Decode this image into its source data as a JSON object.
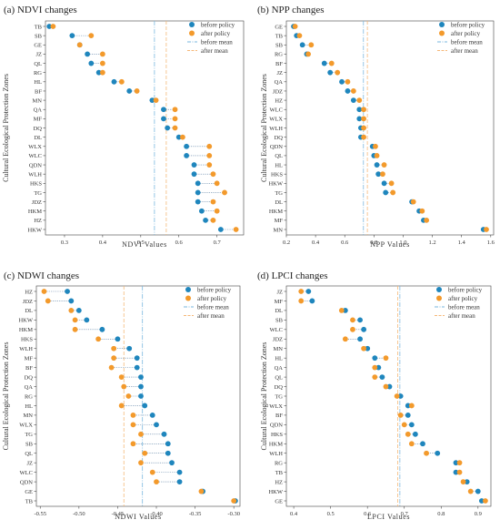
{
  "colors": {
    "before": "#1f86bd",
    "after": "#f39a2c",
    "before_mean": "#7ab7df",
    "after_mean": "#f5b878"
  },
  "chart_data": [
    {
      "type": "dumbbell",
      "title": "(a)  NDVI changes",
      "xlabel": "NDVI Values",
      "ylabel": "Cultural Ecological Protection Zones",
      "xlim": [
        0.25,
        0.77
      ],
      "xticks": [
        0.3,
        0.4,
        0.5,
        0.6,
        0.7
      ],
      "xtick_labels": [
        "0.3",
        "0.4",
        "0.5",
        "0.6",
        "0.7"
      ],
      "categories": [
        "TB",
        "SB",
        "GE",
        "JZ",
        "QL",
        "RG",
        "HL",
        "BF",
        "MN",
        "QA",
        "MF",
        "DQ",
        "DL",
        "WLX",
        "WLC",
        "QDN",
        "WLH",
        "HKS",
        "TG",
        "JDZ",
        "HKM",
        "HZ",
        "HKW"
      ],
      "series": [
        {
          "name": "before policy",
          "values": [
            0.26,
            0.32,
            0.34,
            0.36,
            0.37,
            0.39,
            0.43,
            0.47,
            0.53,
            0.56,
            0.56,
            0.57,
            0.6,
            0.62,
            0.62,
            0.64,
            0.64,
            0.65,
            0.65,
            0.65,
            0.66,
            0.67,
            0.71
          ]
        },
        {
          "name": "after policy",
          "values": [
            0.27,
            0.37,
            0.34,
            0.4,
            0.4,
            0.4,
            0.45,
            0.49,
            0.54,
            0.59,
            0.59,
            0.59,
            0.61,
            0.68,
            0.68,
            0.68,
            0.69,
            0.7,
            0.72,
            0.69,
            0.7,
            0.69,
            0.75
          ]
        }
      ],
      "means": [
        {
          "name": "before mean",
          "value": 0.536
        },
        {
          "name": "after mean",
          "value": 0.567
        }
      ],
      "legend": [
        "before policy",
        "after policy",
        "before mean",
        "after mean"
      ],
      "legend_position": "top-right"
    },
    {
      "type": "dumbbell",
      "title": "(b)  NPP changes",
      "xlabel": "NPP Values",
      "ylabel": "Cultural Ecological Protection Zones",
      "xlim": [
        0.2,
        1.62
      ],
      "xticks": [
        0.2,
        0.4,
        0.6,
        0.8,
        1.0,
        1.2,
        1.4,
        1.6
      ],
      "xtick_labels": [
        "0.2",
        "0.4",
        "0.6",
        "0.8",
        "1.0",
        "1.2",
        "1.4",
        "1.6"
      ],
      "categories": [
        "GE",
        "TB",
        "SB",
        "RG",
        "BF",
        "JZ",
        "QA",
        "JDZ",
        "HZ",
        "WLC",
        "WLX",
        "WLH",
        "DQ",
        "QDN",
        "QL",
        "HL",
        "HKS",
        "HKW",
        "TG",
        "DL",
        "HKM",
        "MF",
        "MN"
      ],
      "series": [
        {
          "name": "before policy",
          "values": [
            0.25,
            0.27,
            0.31,
            0.34,
            0.46,
            0.5,
            0.58,
            0.62,
            0.66,
            0.7,
            0.7,
            0.71,
            0.71,
            0.79,
            0.8,
            0.82,
            0.83,
            0.87,
            0.88,
            1.06,
            1.11,
            1.14,
            1.55
          ]
        },
        {
          "name": "after policy",
          "values": [
            0.26,
            0.29,
            0.37,
            0.35,
            0.51,
            0.55,
            0.62,
            0.66,
            0.7,
            0.73,
            0.73,
            0.73,
            0.73,
            0.81,
            0.82,
            0.87,
            0.86,
            0.92,
            0.93,
            1.07,
            1.13,
            1.16,
            1.57
          ]
        }
      ],
      "means": [
        {
          "name": "before mean",
          "value": 0.728
        },
        {
          "name": "after mean",
          "value": 0.755
        }
      ],
      "legend": [
        "before policy",
        "after policy",
        "before mean",
        "after mean"
      ],
      "legend_position": "top-right"
    },
    {
      "type": "dumbbell",
      "title": "(c)  NDWI changes",
      "xlabel": "NDWI Values",
      "ylabel": "Cultural Ecological Protection Zones",
      "xlim": [
        -0.555,
        -0.292
      ],
      "xticks": [
        -0.55,
        -0.5,
        -0.45,
        -0.4,
        -0.35,
        -0.3
      ],
      "xtick_labels": [
        "-0.55",
        "-0.50",
        "-0.45",
        "-0.40",
        "-0.35",
        "-0.30"
      ],
      "categories": [
        "HZ",
        "JDZ",
        "DL",
        "HKW",
        "HKM",
        "HKS",
        "WLH",
        "MF",
        "BF",
        "DQ",
        "QA",
        "RG",
        "HL",
        "MN",
        "WLX",
        "TG",
        "SB",
        "QL",
        "JZ",
        "WLC",
        "QDN",
        "GE",
        "TB"
      ],
      "series": [
        {
          "name": "before policy",
          "values": [
            -0.515,
            -0.51,
            -0.5,
            -0.49,
            -0.47,
            -0.45,
            -0.435,
            -0.425,
            -0.425,
            -0.42,
            -0.42,
            -0.42,
            -0.415,
            -0.405,
            -0.4,
            -0.39,
            -0.385,
            -0.385,
            -0.38,
            -0.37,
            -0.37,
            -0.34,
            -0.298
          ]
        },
        {
          "name": "after policy",
          "values": [
            -0.545,
            -0.54,
            -0.51,
            -0.505,
            -0.505,
            -0.475,
            -0.455,
            -0.455,
            -0.458,
            -0.445,
            -0.442,
            -0.436,
            -0.445,
            -0.43,
            -0.43,
            -0.42,
            -0.43,
            -0.415,
            -0.42,
            -0.405,
            -0.4,
            -0.342,
            -0.3
          ]
        }
      ],
      "means": [
        {
          "name": "before mean",
          "value": -0.418
        },
        {
          "name": "after mean",
          "value": -0.442
        }
      ],
      "legend": [
        "before policy",
        "after policy",
        "before mean",
        "after mean"
      ],
      "legend_position": "top-right"
    },
    {
      "type": "dumbbell",
      "title": "(d)  LPCI changes",
      "xlabel": "LPCI Values",
      "ylabel": "Cultural Ecological Protection Zones",
      "xlim": [
        0.38,
        0.935
      ],
      "xticks": [
        0.4,
        0.5,
        0.6,
        0.7,
        0.8,
        0.9
      ],
      "xtick_labels": [
        "0.4",
        "0.5",
        "0.6",
        "0.7",
        "0.8",
        "0.9"
      ],
      "categories": [
        "JZ",
        "MF",
        "DL",
        "SB",
        "WLC",
        "JDZ",
        "MN",
        "HL",
        "QA",
        "QL",
        "DQ",
        "TG",
        "WLX",
        "BF",
        "QDN",
        "HKS",
        "HKM",
        "WLH",
        "RG",
        "TB",
        "HZ",
        "HKW",
        "GE"
      ],
      "series": [
        {
          "name": "before policy",
          "values": [
            0.44,
            0.45,
            0.54,
            0.58,
            0.59,
            0.58,
            0.6,
            0.62,
            0.63,
            0.64,
            0.66,
            0.69,
            0.71,
            0.71,
            0.72,
            0.73,
            0.75,
            0.79,
            0.84,
            0.84,
            0.87,
            0.9,
            0.91
          ]
        },
        {
          "name": "after policy",
          "values": [
            0.42,
            0.42,
            0.53,
            0.56,
            0.56,
            0.54,
            0.59,
            0.65,
            0.62,
            0.62,
            0.65,
            0.68,
            0.72,
            0.69,
            0.7,
            0.71,
            0.72,
            0.76,
            0.85,
            0.85,
            0.86,
            0.88,
            0.92
          ]
        }
      ],
      "means": [
        {
          "name": "before mean",
          "value": 0.688
        },
        {
          "name": "after mean",
          "value": 0.682
        }
      ],
      "legend": [
        "before policy",
        "after policy",
        "before mean",
        "after mean"
      ],
      "legend_position": "top-right"
    }
  ]
}
